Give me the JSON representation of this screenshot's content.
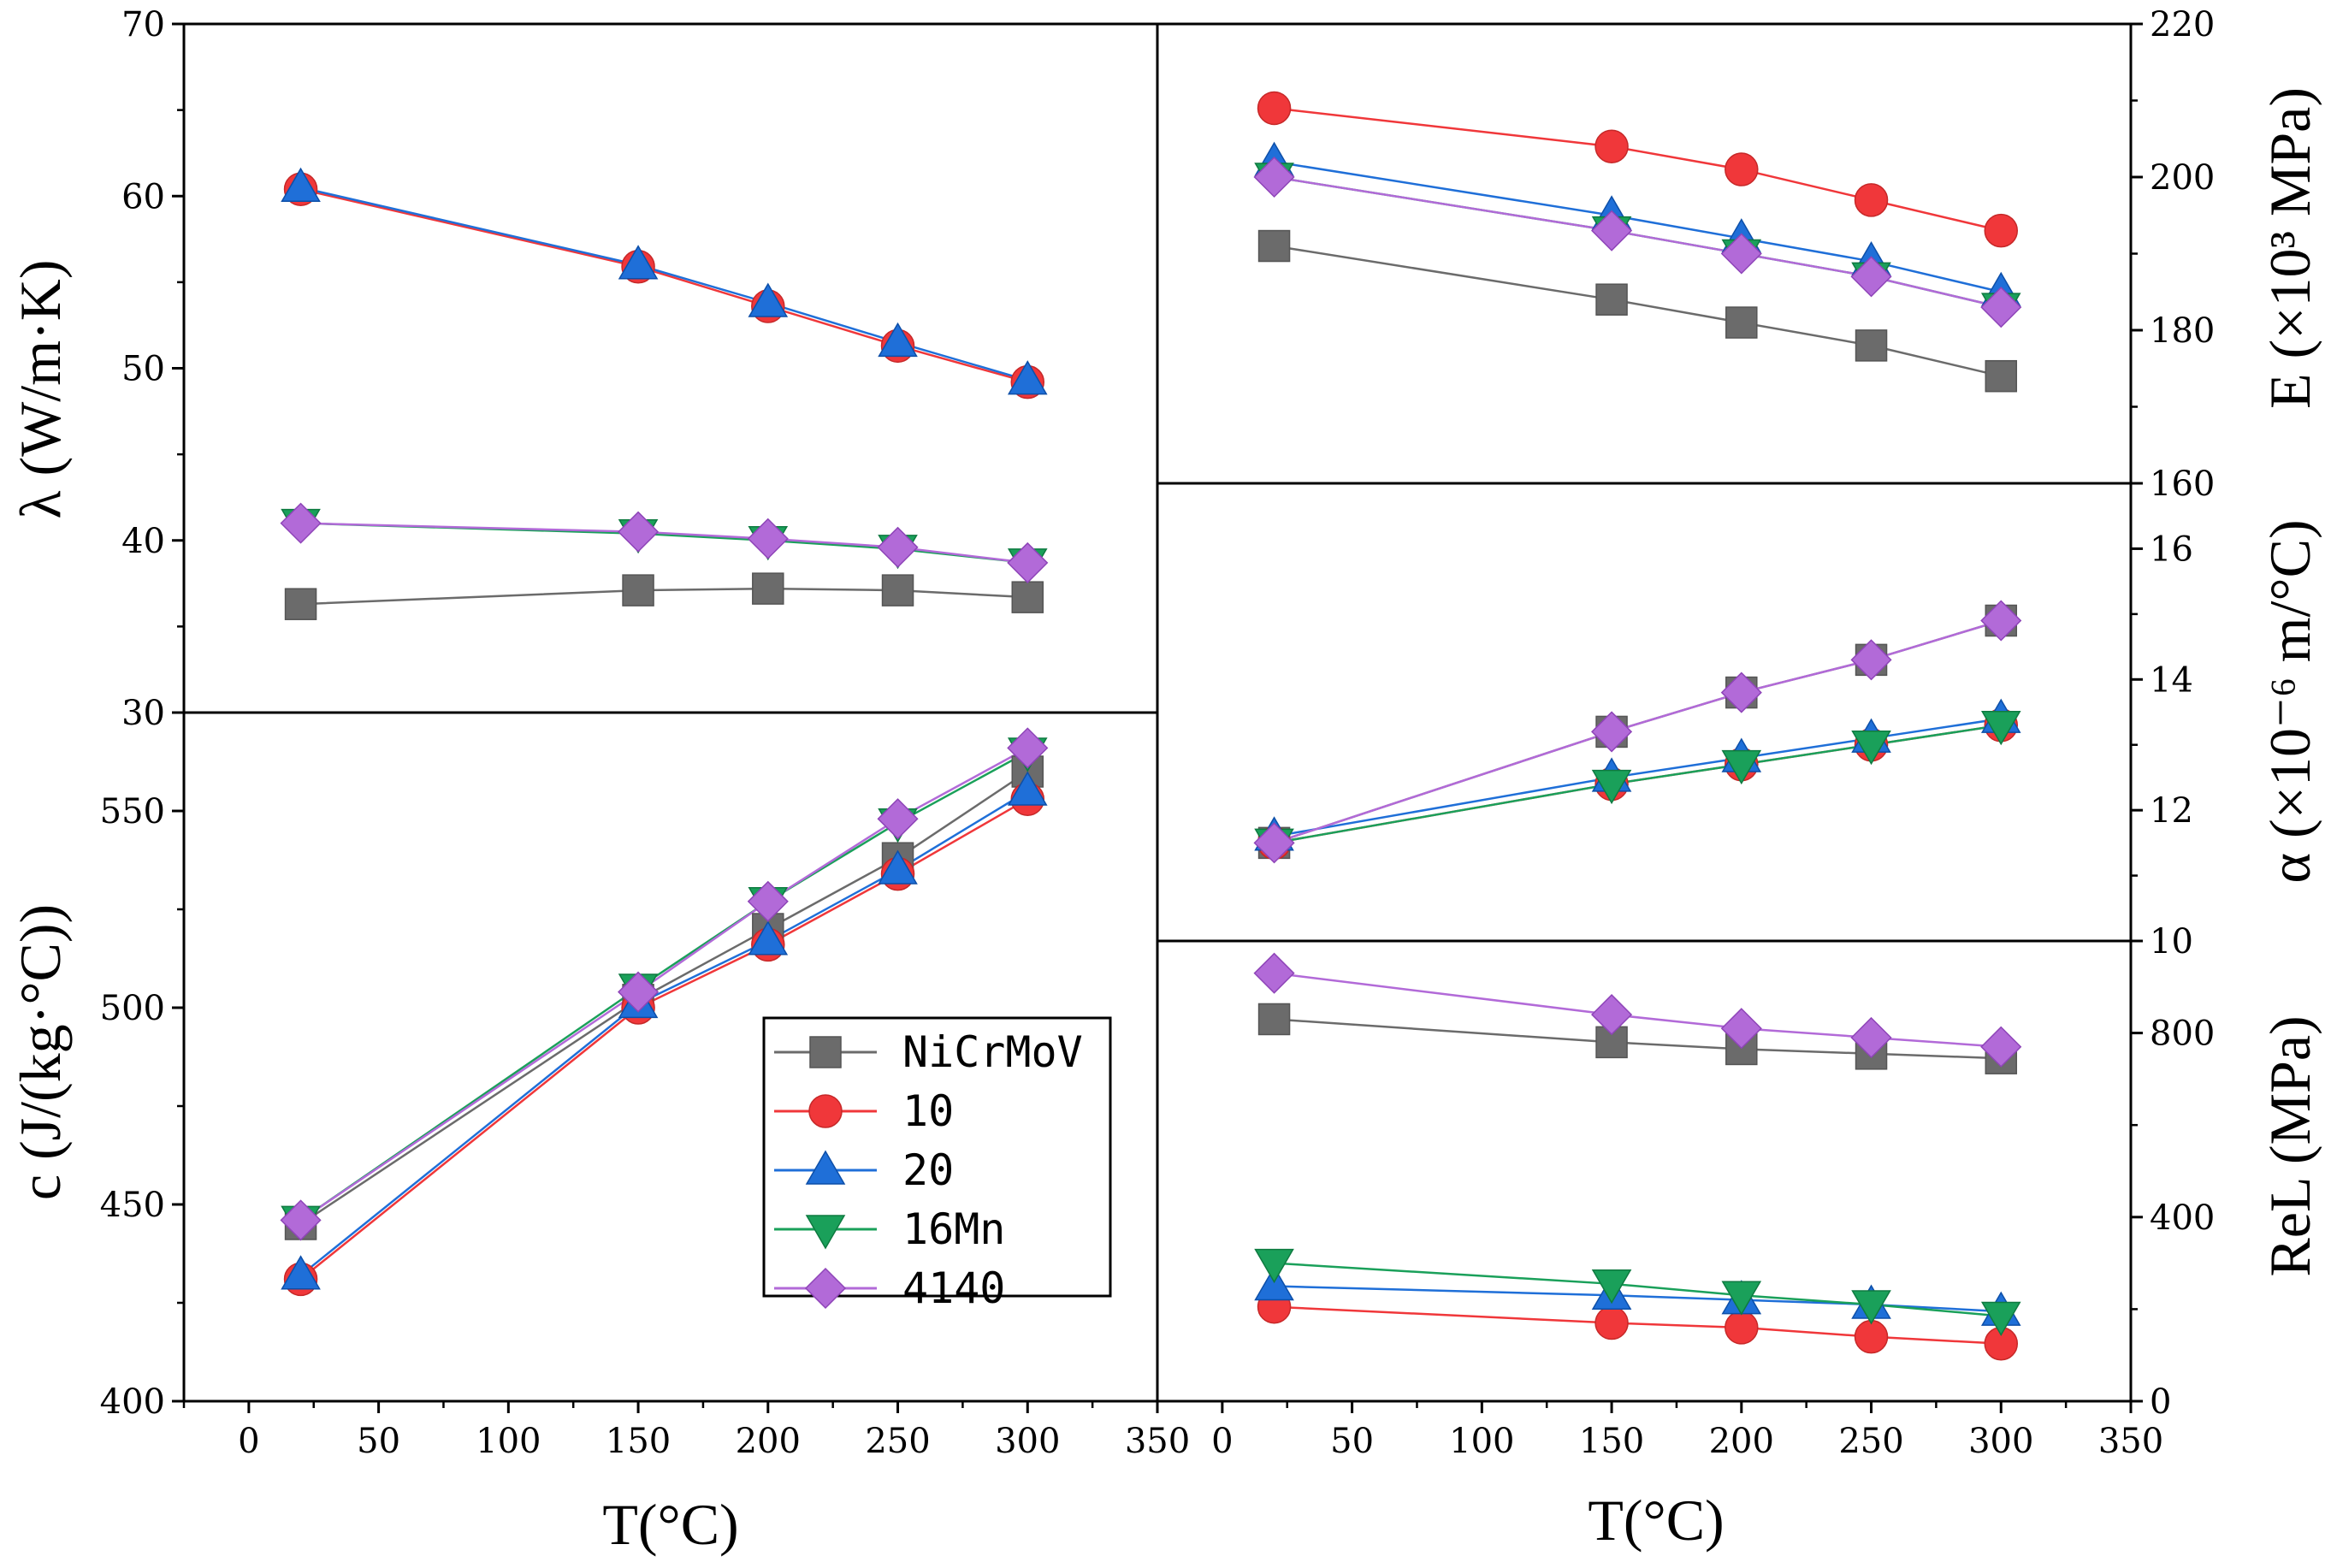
{
  "chart_data": {
    "type": "line",
    "title": "",
    "xlabel": "T(°C)",
    "xlim": [
      -25,
      350
    ],
    "xticks": [
      0,
      50,
      100,
      150,
      200,
      250,
      300,
      350
    ],
    "xtick_labels": [
      "0",
      "50",
      "100",
      "150",
      "200",
      "250",
      "300",
      "350"
    ],
    "series_styles": [
      {
        "name": "NiCrMoV",
        "color": "#6b6b6b",
        "marker": "square"
      },
      {
        "name": "10",
        "color": "#f0373a",
        "marker": "circle"
      },
      {
        "name": "20",
        "color": "#1f6fd8",
        "marker": "triangle-up"
      },
      {
        "name": "16Mn",
        "color": "#1aa05a",
        "marker": "triangle-down"
      },
      {
        "name": "4140",
        "color": "#b26ad8",
        "marker": "diamond"
      }
    ],
    "legend": {
      "position": "inside-bottom-right of specific heat panel",
      "entries": [
        "NiCrMoV",
        "10",
        "20",
        "16Mn",
        "4140"
      ]
    },
    "panels": [
      {
        "id": "thermal-conductivity",
        "ylabel": "λ (W/m·K)",
        "ylim": [
          30,
          70
        ],
        "yticks": [
          30,
          40,
          50,
          60,
          70
        ],
        "ytick_labels": [
          "30",
          "40",
          "50",
          "60",
          "70"
        ],
        "yaxis_side": "left",
        "series": [
          {
            "name": "NiCrMoV",
            "x": [
              20,
              150,
              200,
              250,
              300
            ],
            "y": [
              36.3,
              37.1,
              37.2,
              37.1,
              36.7
            ]
          },
          {
            "name": "10",
            "x": [
              20,
              150,
              200,
              250,
              300
            ],
            "y": [
              60.4,
              55.9,
              53.6,
              51.3,
              49.2
            ]
          },
          {
            "name": "20",
            "x": [
              20,
              150,
              200,
              250,
              300
            ],
            "y": [
              60.5,
              56.0,
              53.8,
              51.5,
              49.3
            ]
          },
          {
            "name": "16Mn",
            "x": [
              20,
              150,
              200,
              250,
              300
            ],
            "y": [
              41.0,
              40.4,
              40.0,
              39.5,
              38.7
            ]
          },
          {
            "name": "4140",
            "x": [
              20,
              150,
              200,
              250,
              300
            ],
            "y": [
              41.0,
              40.5,
              40.1,
              39.6,
              38.7
            ]
          }
        ]
      },
      {
        "id": "specific-heat",
        "ylabel": "c (J/(kg·°C))",
        "ylim": [
          400,
          575
        ],
        "yticks": [
          400,
          450,
          500,
          550
        ],
        "ytick_labels": [
          "400",
          "450",
          "500",
          "550"
        ],
        "yaxis_side": "left",
        "series": [
          {
            "name": "NiCrMoV",
            "x": [
              20,
              150,
              200,
              250,
              300
            ],
            "y": [
              445,
              502,
              520,
              538,
              560
            ]
          },
          {
            "name": "10",
            "x": [
              20,
              150,
              200,
              250,
              300
            ],
            "y": [
              431,
              500,
              516,
              534,
              553
            ]
          },
          {
            "name": "20",
            "x": [
              20,
              150,
              200,
              250,
              300
            ],
            "y": [
              432,
              501,
              517,
              535,
              555
            ]
          },
          {
            "name": "16Mn",
            "x": [
              20,
              150,
              200,
              250,
              300
            ],
            "y": [
              446,
              505,
              527,
              547,
              565
            ]
          },
          {
            "name": "4140",
            "x": [
              20,
              150,
              200,
              250,
              300
            ],
            "y": [
              446,
              504,
              527,
              548,
              566
            ]
          }
        ]
      },
      {
        "id": "elastic-modulus",
        "ylabel": "E (×10³ MPa)",
        "ylim": [
          160,
          220
        ],
        "yticks": [
          160,
          180,
          200,
          220
        ],
        "ytick_labels": [
          "160",
          "180",
          "200",
          "220"
        ],
        "yaxis_side": "right",
        "series": [
          {
            "name": "NiCrMoV",
            "x": [
              20,
              150,
              200,
              250,
              300
            ],
            "y": [
              191,
              184,
              181,
              178,
              174
            ]
          },
          {
            "name": "10",
            "x": [
              20,
              150,
              200,
              250,
              300
            ],
            "y": [
              209,
              204,
              201,
              197,
              193
            ]
          },
          {
            "name": "20",
            "x": [
              20,
              150,
              200,
              250,
              300
            ],
            "y": [
              202,
              195,
              192,
              189,
              185
            ]
          },
          {
            "name": "16Mn",
            "x": [
              20,
              150,
              200,
              250,
              300
            ],
            "y": [
              200,
              193,
              190,
              187,
              183
            ]
          },
          {
            "name": "4140",
            "x": [
              20,
              150,
              200,
              250,
              300
            ],
            "y": [
              200,
              193,
              190,
              187,
              183
            ]
          }
        ]
      },
      {
        "id": "thermal-expansion",
        "ylabel": "α (×10⁻⁶ m/°C)",
        "ylim": [
          10,
          17
        ],
        "yticks": [
          10,
          12,
          14,
          16
        ],
        "ytick_labels": [
          "10",
          "12",
          "14",
          "16"
        ],
        "yaxis_side": "right",
        "series": [
          {
            "name": "NiCrMoV",
            "x": [
              20,
              150,
              200,
              250,
              300
            ],
            "y": [
              11.5,
              13.2,
              13.8,
              14.3,
              14.9
            ]
          },
          {
            "name": "10",
            "x": [
              20,
              150,
              200,
              250,
              300
            ],
            "y": [
              11.5,
              12.4,
              12.7,
              13.0,
              13.3
            ]
          },
          {
            "name": "20",
            "x": [
              20,
              150,
              200,
              250,
              300
            ],
            "y": [
              11.6,
              12.5,
              12.8,
              13.1,
              13.4
            ]
          },
          {
            "name": "16Mn",
            "x": [
              20,
              150,
              200,
              250,
              300
            ],
            "y": [
              11.5,
              12.4,
              12.7,
              13.0,
              13.3
            ]
          },
          {
            "name": "4140",
            "x": [
              20,
              150,
              200,
              250,
              300
            ],
            "y": [
              11.5,
              13.2,
              13.8,
              14.3,
              14.9
            ]
          }
        ]
      },
      {
        "id": "yield-strength",
        "ylabel": "ReL (MPa)",
        "ylim": [
          0,
          1000
        ],
        "yticks": [
          0,
          400,
          800
        ],
        "ytick_labels": [
          "0",
          "400",
          "800"
        ],
        "yaxis_side": "right",
        "series": [
          {
            "name": "NiCrMoV",
            "x": [
              20,
              150,
              200,
              250,
              300
            ],
            "y": [
              830,
              780,
              765,
              755,
              745
            ]
          },
          {
            "name": "10",
            "x": [
              20,
              150,
              200,
              250,
              300
            ],
            "y": [
              205,
              170,
              160,
              140,
              125
            ]
          },
          {
            "name": "20",
            "x": [
              20,
              150,
              200,
              250,
              300
            ],
            "y": [
              250,
              230,
              220,
              210,
              195
            ]
          },
          {
            "name": "16Mn",
            "x": [
              20,
              150,
              200,
              250,
              300
            ],
            "y": [
              300,
              255,
              230,
              210,
              185
            ]
          },
          {
            "name": "4140",
            "x": [
              20,
              150,
              200,
              250,
              300
            ],
            "y": [
              930,
              840,
              810,
              790,
              770
            ]
          }
        ]
      }
    ]
  }
}
